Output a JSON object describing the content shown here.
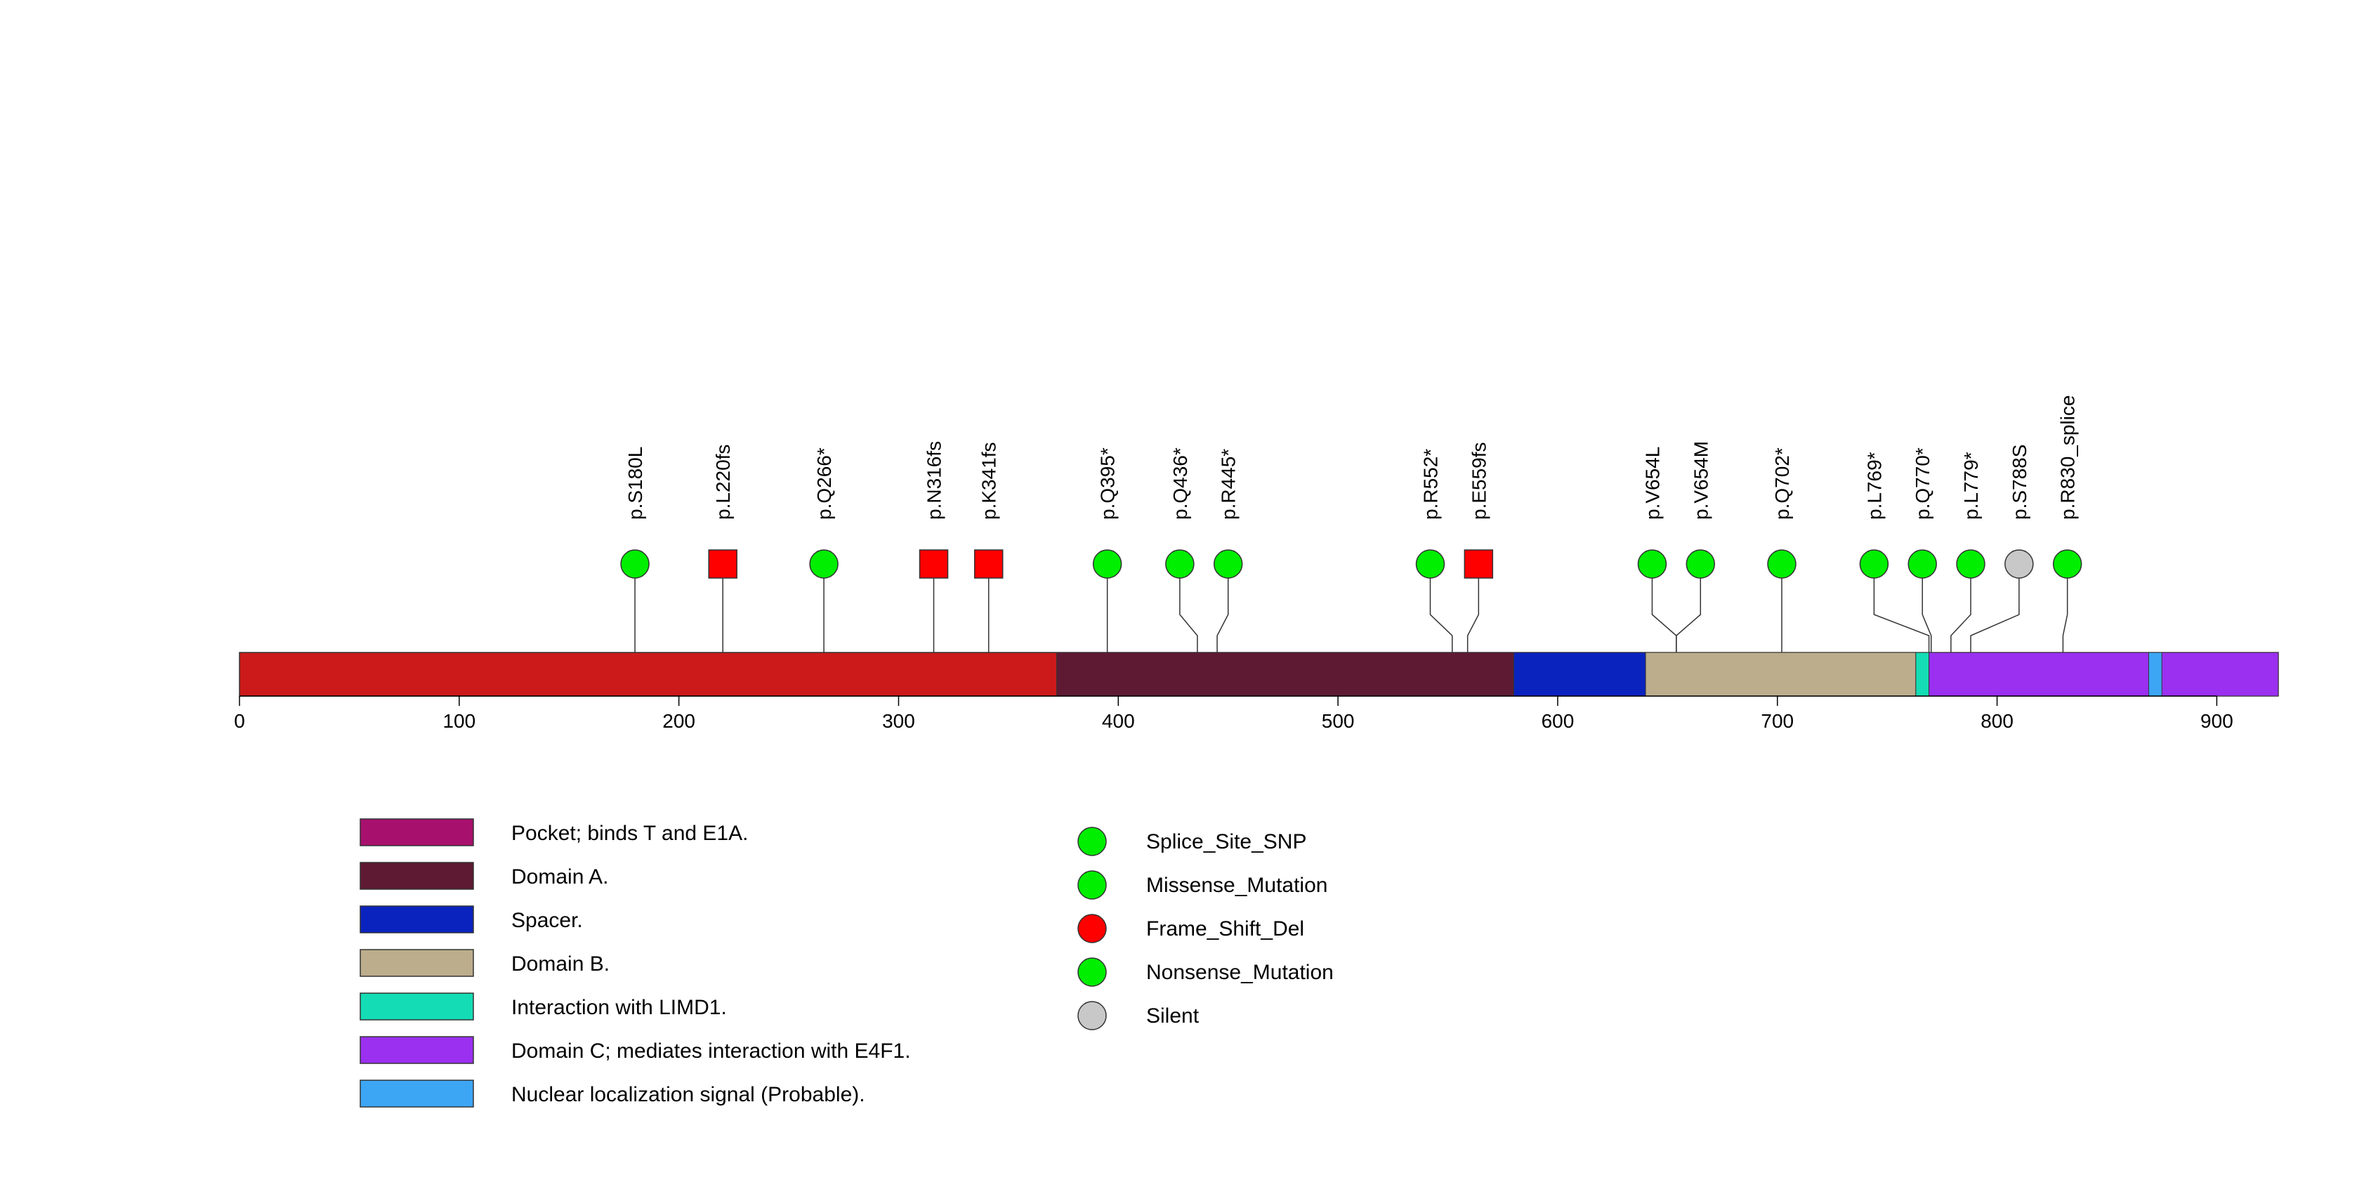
{
  "chart_data": {
    "type": "lollipop",
    "title": "",
    "xlabel": "",
    "protein_length": 928,
    "xlim": [
      0,
      928
    ],
    "x_ticks": [
      0,
      100,
      200,
      300,
      400,
      500,
      600,
      700,
      800,
      900
    ],
    "backbone_color": "#cc1a1a",
    "domains": [
      {
        "name": "Pocket; binds T and E1A.",
        "start": 372,
        "end": 928,
        "color": "#a8106e"
      },
      {
        "name": "Domain A.",
        "start": 372,
        "end": 580,
        "color": "#5e1a33"
      },
      {
        "name": "Spacer.",
        "start": 580,
        "end": 640,
        "color": "#0a23bf"
      },
      {
        "name": "Domain B.",
        "start": 640,
        "end": 763,
        "color": "#bcad8c"
      },
      {
        "name": "Interaction with LIMD1.",
        "start": 763,
        "end": 769,
        "color": "#14dcb4"
      },
      {
        "name": "Domain C; mediates interaction with E4F1.",
        "start": 769,
        "end": 928,
        "color": "#9b30f0"
      },
      {
        "name": "Nuclear localization signal (Probable).",
        "start": 869,
        "end": 875,
        "color": "#3ca6f5"
      }
    ],
    "mutations": [
      {
        "label": "p.S180L",
        "position": 180,
        "type": "Missense_Mutation",
        "display_x": 180
      },
      {
        "label": "p.L220fs",
        "position": 220,
        "type": "Frame_Shift_Del",
        "display_x": 220
      },
      {
        "label": "p.Q266*",
        "position": 266,
        "type": "Nonsense_Mutation",
        "display_x": 266
      },
      {
        "label": "p.N316fs",
        "position": 316,
        "type": "Frame_Shift_Del",
        "display_x": 316
      },
      {
        "label": "p.K341fs",
        "position": 341,
        "type": "Frame_Shift_Del",
        "display_x": 341
      },
      {
        "label": "p.Q395*",
        "position": 395,
        "type": "Nonsense_Mutation",
        "display_x": 395
      },
      {
        "label": "p.Q436*",
        "position": 436,
        "type": "Nonsense_Mutation",
        "display_x": 428
      },
      {
        "label": "p.R445*",
        "position": 445,
        "type": "Nonsense_Mutation",
        "display_x": 450
      },
      {
        "label": "p.R552*",
        "position": 552,
        "type": "Nonsense_Mutation",
        "display_x": 542
      },
      {
        "label": "p.E559fs",
        "position": 559,
        "type": "Frame_Shift_Del",
        "display_x": 564
      },
      {
        "label": "p.V654L",
        "position": 654,
        "type": "Missense_Mutation",
        "display_x": 643
      },
      {
        "label": "p.V654M",
        "position": 654,
        "type": "Missense_Mutation",
        "display_x": 665
      },
      {
        "label": "p.Q702*",
        "position": 702,
        "type": "Nonsense_Mutation",
        "display_x": 702
      },
      {
        "label": "p.L769*",
        "position": 769,
        "type": "Nonsense_Mutation",
        "display_x": 744
      },
      {
        "label": "p.Q770*",
        "position": 770,
        "type": "Nonsense_Mutation",
        "display_x": 766
      },
      {
        "label": "p.L779*",
        "position": 779,
        "type": "Nonsense_Mutation",
        "display_x": 788
      },
      {
        "label": "p.S788S",
        "position": 788,
        "type": "Silent",
        "display_x": 810
      },
      {
        "label": "p.R830_splice",
        "position": 830,
        "type": "Splice_Site_SNP",
        "display_x": 832
      }
    ],
    "mutation_legend": [
      {
        "name": "Splice_Site_SNP",
        "color": "#00ee00"
      },
      {
        "name": "Missense_Mutation",
        "color": "#00ee00"
      },
      {
        "name": "Frame_Shift_Del",
        "color": "#ff0000"
      },
      {
        "name": "Nonsense_Mutation",
        "color": "#00ee00"
      },
      {
        "name": "Silent",
        "color": "#c8c8c8"
      }
    ],
    "marker_shapes": {
      "Splice_Site_SNP": "circle",
      "Missense_Mutation": "circle",
      "Frame_Shift_Del": "square",
      "Nonsense_Mutation": "circle",
      "Silent": "circle"
    }
  }
}
